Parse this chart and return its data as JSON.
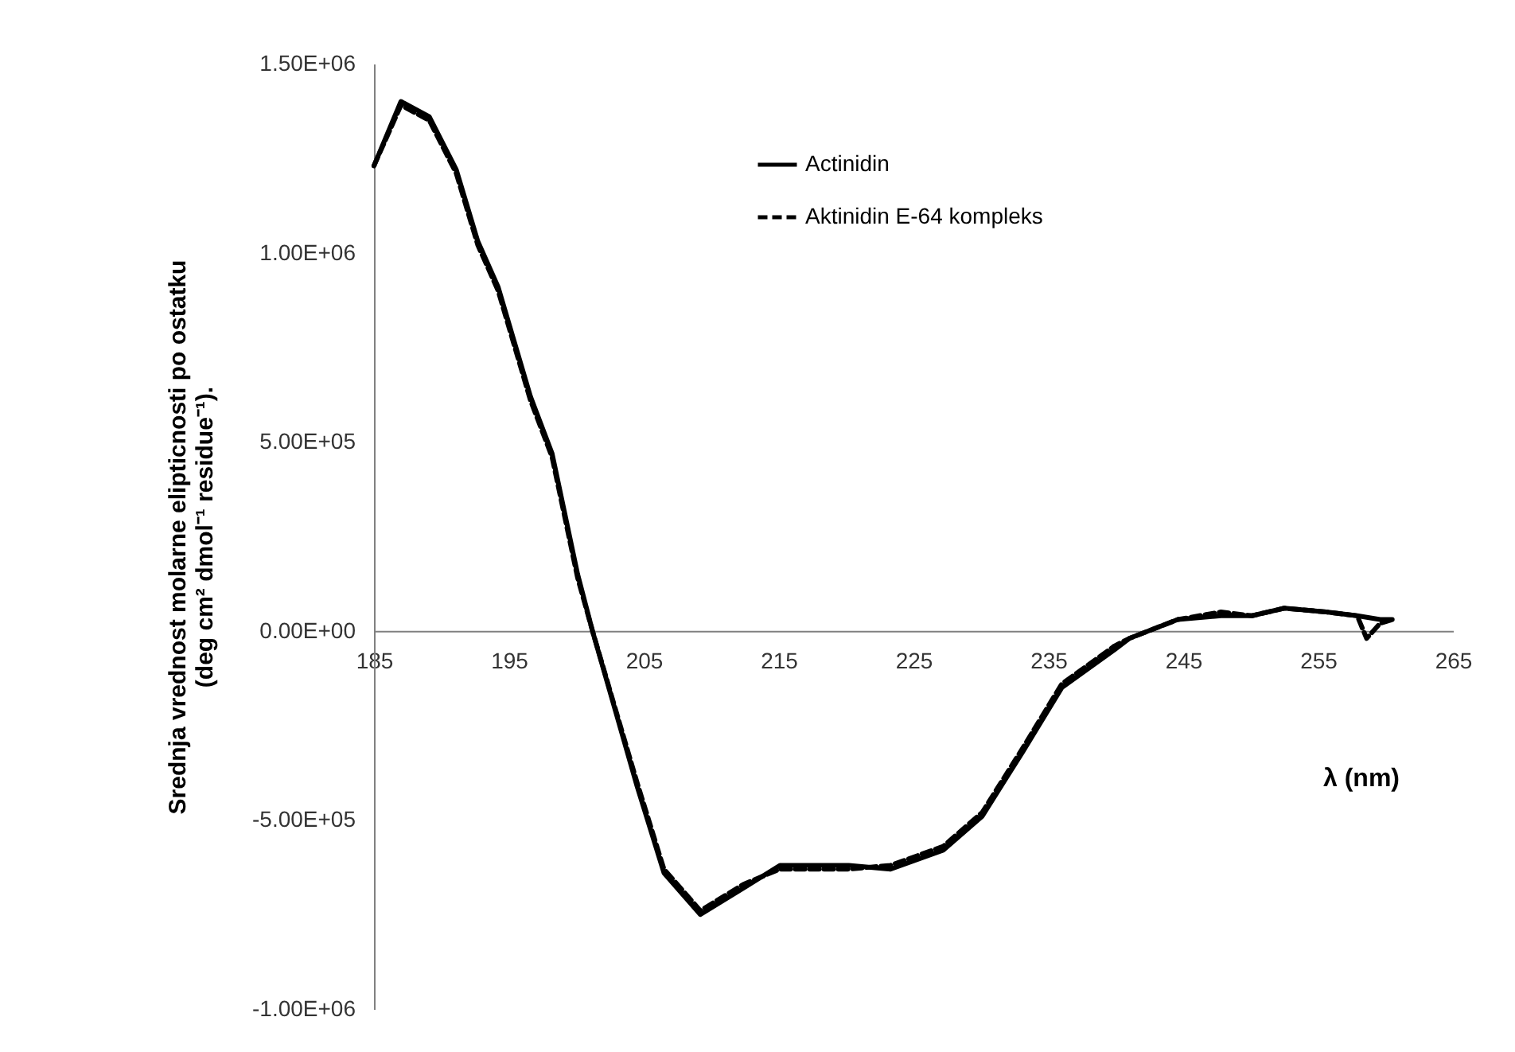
{
  "chart_data": {
    "type": "line",
    "xlabel": "λ (nm)",
    "ylabel": "Srednja vrednost molarne elipticnosti po ostatku\n(deg cm² dmol⁻¹ residue⁻¹).",
    "xlim": [
      185,
      265
    ],
    "xticks": [
      185,
      195,
      205,
      215,
      225,
      235,
      245,
      255,
      265
    ],
    "ylim": [
      -1000000,
      1500000
    ],
    "yticks": [
      {
        "value": -1000000,
        "label": "-1.00E+06"
      },
      {
        "value": -500000,
        "label": "-5.00E+05"
      },
      {
        "value": 0,
        "label": "0.00E+00"
      },
      {
        "value": 500000,
        "label": "5.00E+05"
      },
      {
        "value": 1000000,
        "label": "1.00E+06"
      },
      {
        "value": 1500000,
        "label": "1.50E+06"
      }
    ],
    "grid": false,
    "legend": "top right",
    "marker": "none",
    "series": [
      {
        "name": "Actinidin",
        "color": "#000000",
        "line_style": "solid",
        "x": [
          185,
          187,
          189.1,
          191.1,
          192.7,
          194.2,
          196.6,
          198.2,
          200.1,
          201.2,
          204.5,
          206.5,
          209.2,
          212.4,
          215.1,
          220.2,
          223.3,
          227.2,
          230.1,
          233.1,
          236,
          239.9,
          241,
          244.6,
          247.8,
          250.1,
          252.5,
          255.6,
          257.9,
          259.6,
          260.5
        ],
        "values": [
          1230000,
          1400000,
          1360000,
          1220000,
          1030000,
          910000,
          620000,
          470000,
          150000,
          0,
          -410000,
          -640000,
          -750000,
          -680000,
          -620000,
          -620000,
          -630000,
          -580000,
          -490000,
          -320000,
          -150000,
          -50000,
          -20000,
          30000,
          40000,
          40000,
          60000,
          50000,
          40000,
          30000,
          30000
        ]
      },
      {
        "name": "Aktinidin E-64 kompleks",
        "color": "#000000",
        "line_style": "dashed",
        "x": [
          185,
          187,
          189.1,
          191.1,
          192.7,
          194.2,
          196.6,
          198.2,
          200.1,
          201.2,
          204.5,
          206.5,
          209.2,
          212.4,
          215.1,
          220.2,
          223.3,
          227.2,
          230.1,
          233.1,
          236,
          239.9,
          241,
          244.6,
          247.8,
          250.1,
          252.5,
          255.6,
          257.9,
          258.6,
          259.6,
          260.5
        ],
        "values": [
          1230000,
          1390000,
          1350000,
          1210000,
          1020000,
          900000,
          610000,
          460000,
          140000,
          0,
          -400000,
          -630000,
          -740000,
          -670000,
          -630000,
          -630000,
          -620000,
          -570000,
          -480000,
          -310000,
          -140000,
          -40000,
          -20000,
          30000,
          50000,
          40000,
          60000,
          50000,
          40000,
          -20000,
          20000,
          30000
        ]
      }
    ]
  }
}
